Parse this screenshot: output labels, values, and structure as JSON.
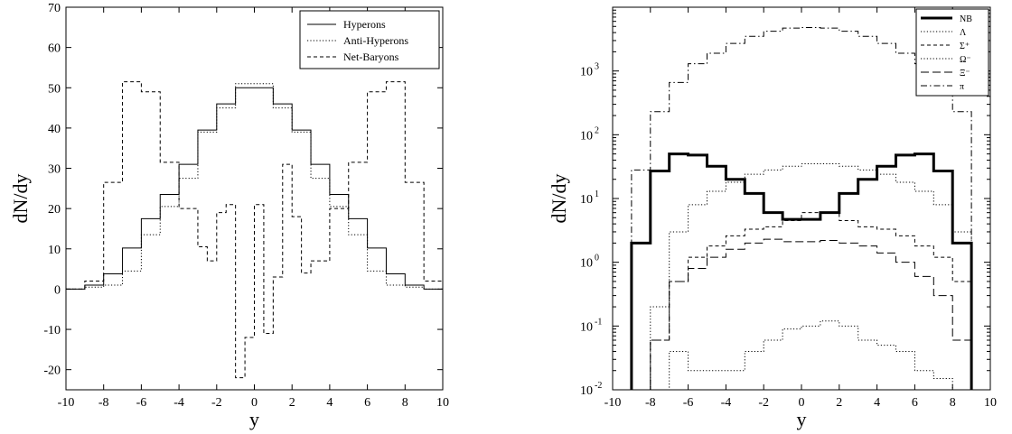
{
  "chart_data": [
    {
      "type": "line",
      "step": true,
      "xlabel": "y",
      "ylabel": "dN/dy",
      "xlim": [
        -10,
        10
      ],
      "ylim": [
        -25,
        70
      ],
      "xticks": [
        -10,
        -8,
        -6,
        -4,
        -2,
        0,
        2,
        4,
        6,
        8,
        10
      ],
      "yticks": [
        -20,
        -10,
        0,
        10,
        20,
        30,
        40,
        50,
        60,
        70
      ],
      "legend_position": "top-right",
      "series": [
        {
          "name": "Hyperons",
          "style": "solid",
          "edges": [
            -10,
            -9,
            -8,
            -7,
            -6,
            -5,
            -4,
            -3,
            -2,
            -1,
            0,
            1,
            2,
            3,
            4,
            5,
            6,
            7,
            8,
            9,
            10
          ],
          "values": [
            0,
            1,
            3.8,
            10.2,
            17.5,
            23.5,
            31,
            39.5,
            46,
            50,
            50,
            46,
            39.5,
            31,
            23.5,
            17.5,
            10.2,
            3.8,
            1,
            0
          ]
        },
        {
          "name": "Anti-Hyperons",
          "style": "dotted",
          "edges": [
            -10,
            -9,
            -8,
            -7,
            -6,
            -5,
            -4,
            -3,
            -2,
            -1,
            0,
            1,
            2,
            3,
            4,
            5,
            6,
            7,
            8,
            9,
            10
          ],
          "values": [
            0,
            0.5,
            1,
            4.5,
            13.5,
            20.5,
            27.5,
            39,
            45,
            51,
            51,
            45,
            39,
            27.5,
            20.5,
            13.5,
            4.5,
            1,
            0.5,
            0
          ]
        },
        {
          "name": "Net-Baryons",
          "style": "dashed",
          "edges": [
            -10,
            -9,
            -8,
            -7,
            -6,
            -5,
            -4,
            -3,
            -2.5,
            -2,
            -1.5,
            -1,
            -0.5,
            0,
            0.5,
            1,
            1.5,
            2,
            2.5,
            3,
            4,
            5,
            6,
            7,
            8,
            9,
            10
          ],
          "values": [
            0,
            2,
            26.5,
            51.5,
            49,
            31.5,
            20,
            10.5,
            7,
            19,
            21,
            -22,
            -12,
            21,
            -11,
            3,
            31,
            18,
            4,
            7,
            20,
            31.5,
            49,
            51.5,
            26.5,
            2,
            0
          ]
        }
      ]
    },
    {
      "type": "line",
      "step": true,
      "yscale": "log",
      "xlabel": "y",
      "ylabel": "dN/dy",
      "xlim": [
        -10,
        10
      ],
      "ylim": [
        0.01,
        10000
      ],
      "xticks": [
        -10,
        -8,
        -6,
        -4,
        -2,
        0,
        2,
        4,
        6,
        8,
        10
      ],
      "ytick_labels": [
        {
          "base": "10",
          "exp": "-2",
          "value": 0.01
        },
        {
          "base": "10",
          "exp": "-1",
          "value": 0.1
        },
        {
          "base": "10",
          "exp": "0",
          "value": 1
        },
        {
          "base": "10",
          "exp": "1",
          "value": 10
        },
        {
          "base": "10",
          "exp": "2",
          "value": 100
        },
        {
          "base": "10",
          "exp": "3",
          "value": 1000
        }
      ],
      "legend_position": "top-right",
      "edges": [
        -9,
        -8,
        -7,
        -6,
        -5,
        -4,
        -3,
        -2,
        -1,
        0,
        1,
        2,
        3,
        4,
        5,
        6,
        7,
        8,
        9
      ],
      "series": [
        {
          "name": "NB",
          "style": "thick-solid",
          "values": [
            2,
            27,
            50,
            48,
            32,
            20,
            12,
            6,
            4.7,
            4.7,
            6,
            12,
            20,
            32,
            48,
            50,
            27,
            2
          ]
        },
        {
          "name": "Λ",
          "style": "dotted",
          "values": [
            0.01,
            0.2,
            3,
            8,
            13,
            18,
            24,
            28,
            32,
            35,
            35,
            32,
            28,
            24,
            18,
            13,
            8,
            3
          ]
        },
        {
          "name": "Σ⁺",
          "style": "dashed",
          "values": [
            0.01,
            0.06,
            0.5,
            1.2,
            1.8,
            2.6,
            3.3,
            3.6,
            4.5,
            6,
            6,
            4.5,
            3.6,
            3.3,
            2.6,
            1.8,
            1.2,
            0.5
          ]
        },
        {
          "name": "Ω⁻",
          "style": "dotted",
          "values": [
            0.01,
            0.01,
            0.04,
            0.02,
            0.02,
            0.02,
            0.04,
            0.06,
            0.09,
            0.1,
            0.12,
            0.1,
            0.06,
            0.05,
            0.04,
            0.02,
            0.015,
            0.01
          ]
        },
        {
          "name": "Ξ⁻",
          "style": "long-dash",
          "values": [
            0.01,
            0.06,
            0.5,
            0.8,
            1.2,
            1.6,
            2,
            2.3,
            2.1,
            2.1,
            2.2,
            2,
            1.8,
            1.4,
            1,
            0.6,
            0.3,
            0.06
          ]
        },
        {
          "name": "π",
          "style": "dash-dot",
          "values": [
            28,
            230,
            660,
            1300,
            1900,
            2700,
            3500,
            4200,
            4700,
            4800,
            4700,
            4200,
            3500,
            2700,
            1900,
            1300,
            660,
            230
          ]
        }
      ]
    }
  ]
}
